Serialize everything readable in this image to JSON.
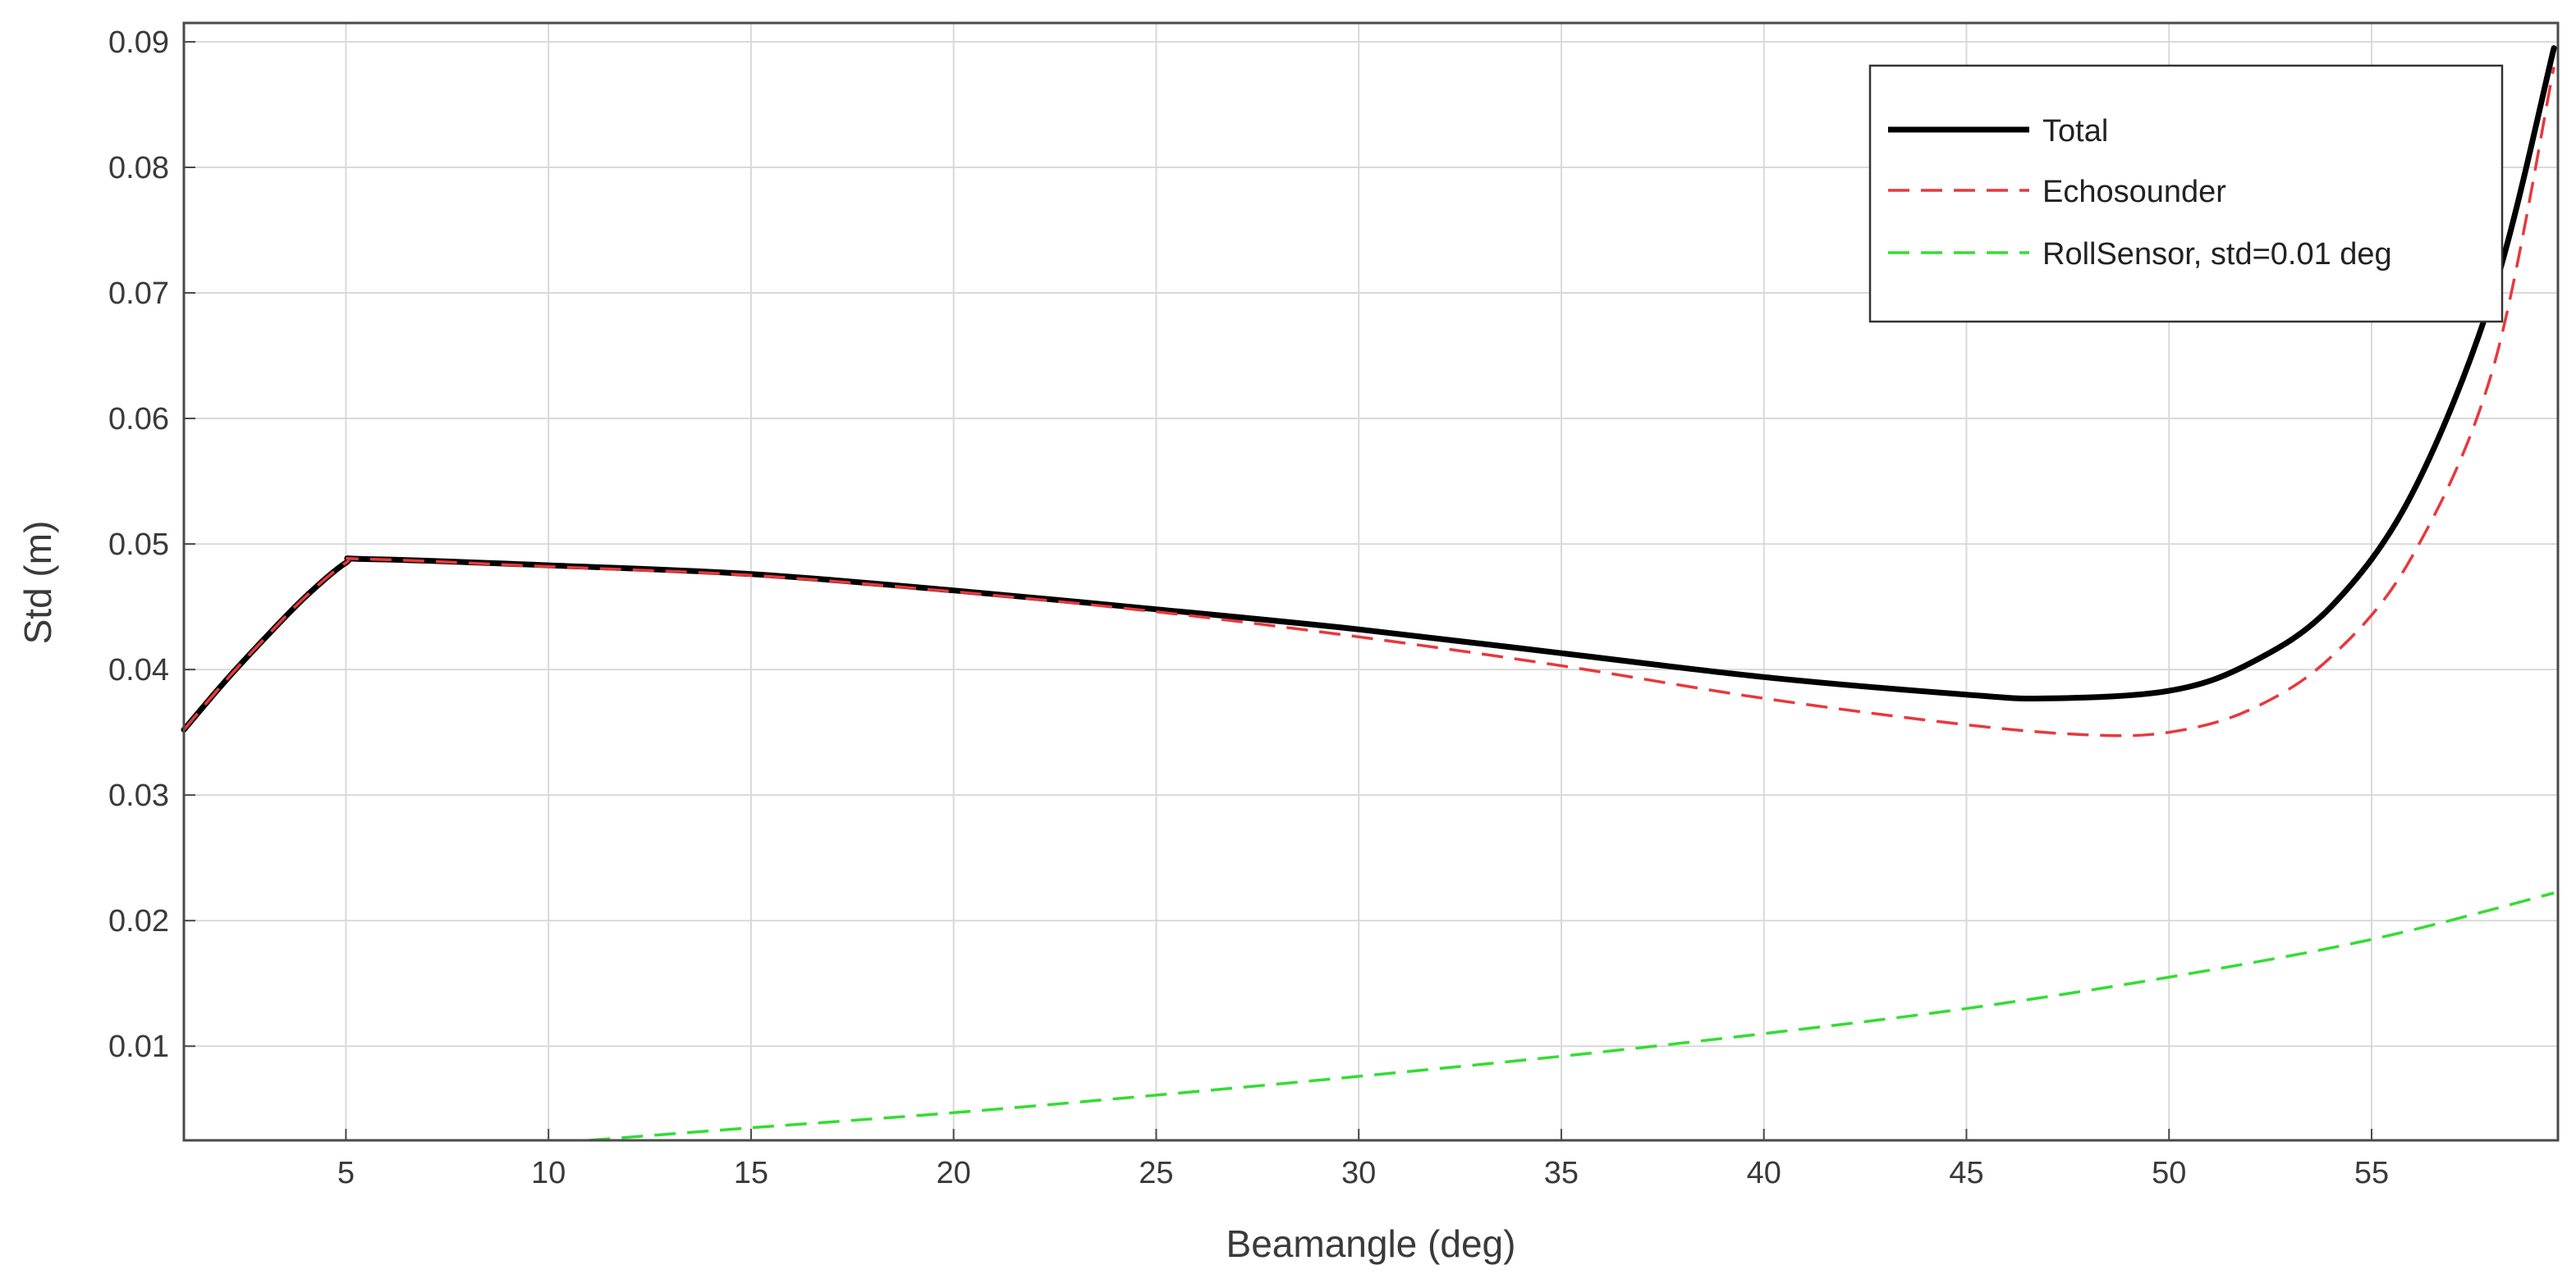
{
  "chart_data": {
    "type": "line",
    "title": "",
    "xlabel": "Beamangle (deg)",
    "ylabel": "Std (m)",
    "xlim": [
      1,
      59.6
    ],
    "ylim": [
      0.0025,
      0.0915
    ],
    "xticks": [
      5,
      10,
      15,
      20,
      25,
      30,
      35,
      40,
      45,
      50,
      55
    ],
    "yticks": [
      0.01,
      0.02,
      0.03,
      0.04,
      0.05,
      0.06,
      0.07,
      0.08,
      0.09
    ],
    "xtick_labels": [
      "5",
      "10",
      "15",
      "20",
      "25",
      "30",
      "35",
      "40",
      "45",
      "50",
      "55"
    ],
    "ytick_labels": [
      "0.01",
      "0.02",
      "0.03",
      "0.04",
      "0.05",
      "0.06",
      "0.07",
      "0.08",
      "0.09"
    ],
    "grid": true,
    "legend_position": "top-right",
    "series": [
      {
        "name": "Total",
        "color": "#000000",
        "dash": "solid",
        "x": [
          1,
          2,
          3,
          4,
          5,
          5.5,
          10,
          15,
          20,
          25,
          30,
          35,
          40,
          45,
          47,
          50,
          52,
          54,
          56,
          58,
          59.5
        ],
        "y": [
          0.0352,
          0.039,
          0.0425,
          0.0458,
          0.0485,
          0.0488,
          0.0483,
          0.0476,
          0.0463,
          0.0448,
          0.0432,
          0.0413,
          0.0394,
          0.038,
          0.0377,
          0.0383,
          0.0405,
          0.045,
          0.054,
          0.07,
          0.0895
        ]
      },
      {
        "name": "Echosounder",
        "color": "#e8383d",
        "dash": "dashed",
        "x": [
          1,
          2,
          3,
          4,
          5,
          5.5,
          10,
          15,
          20,
          25,
          30,
          35,
          40,
          45,
          48,
          50,
          52,
          54,
          56,
          58,
          59.5
        ],
        "y": [
          0.0352,
          0.039,
          0.0425,
          0.0458,
          0.0485,
          0.0488,
          0.0482,
          0.0475,
          0.0462,
          0.0446,
          0.0426,
          0.0403,
          0.0377,
          0.0356,
          0.0348,
          0.035,
          0.0368,
          0.041,
          0.049,
          0.064,
          0.088
        ]
      },
      {
        "name": "RollSensor, std=0.01 deg",
        "color": "#33dd33",
        "dash": "dashed",
        "x": [
          11,
          15,
          20,
          25,
          30,
          35,
          40,
          45,
          50,
          55,
          59.5
        ],
        "y": [
          0.0025,
          0.0035,
          0.0047,
          0.0061,
          0.0076,
          0.0092,
          0.011,
          0.013,
          0.0155,
          0.0185,
          0.0222
        ]
      }
    ]
  }
}
